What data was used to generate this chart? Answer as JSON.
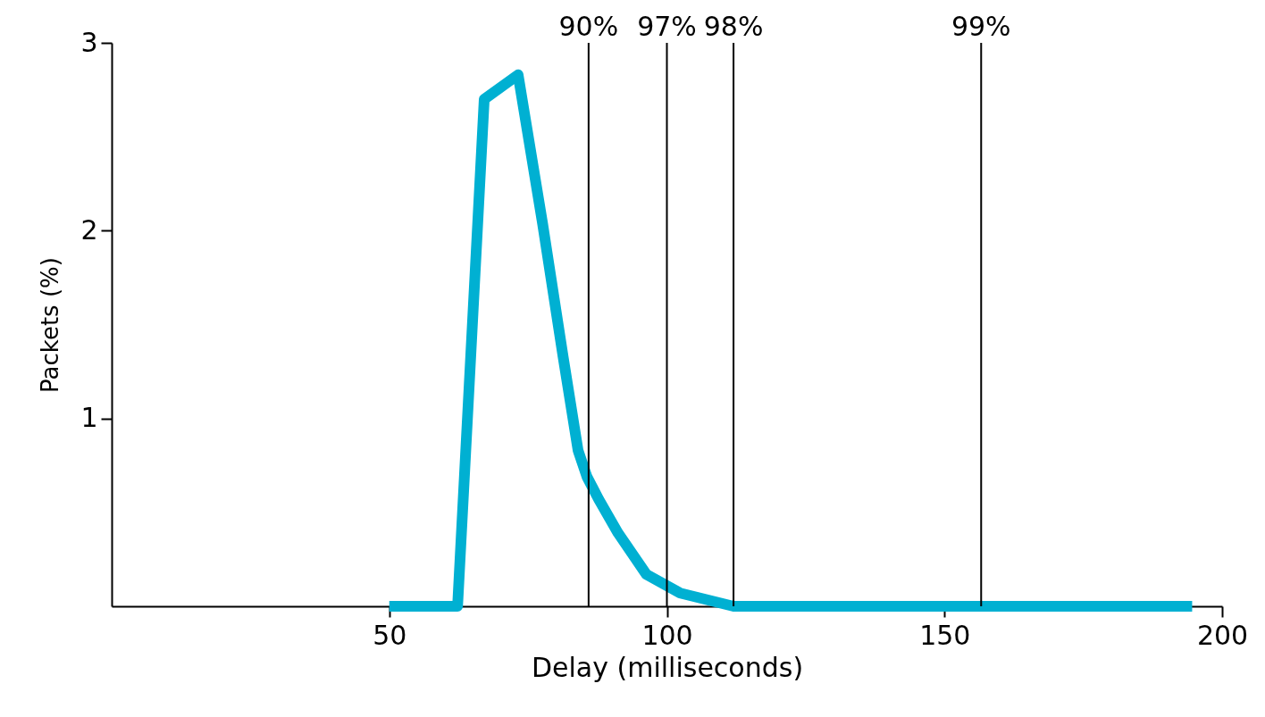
{
  "chart_data": {
    "type": "line",
    "xlabel": "Delay (milliseconds)",
    "ylabel": "Packets (%)",
    "xlim": [
      0,
      200
    ],
    "ylim": [
      0,
      3
    ],
    "xticks": [
      50,
      100,
      150,
      200
    ],
    "yticks": [
      1,
      2,
      3
    ],
    "grid": false,
    "series": [
      {
        "color": "#00b0d2",
        "x": [
          50,
          62.3,
          67.1,
          73.2,
          77.6,
          81.3,
          84,
          85.6,
          87.7,
          91.2,
          96.3,
          102.4,
          112,
          194.6
        ],
        "values": [
          0,
          0,
          2.7,
          2.83,
          2.04,
          1.33,
          0.83,
          0.69,
          0.57,
          0.39,
          0.17,
          0.07,
          0,
          0
        ]
      }
    ],
    "ref_lines": [
      {
        "axis": "x",
        "value": 85.9
      },
      {
        "axis": "x",
        "value": 100
      },
      {
        "axis": "x",
        "value": 112
      },
      {
        "axis": "x",
        "value": 156.6
      }
    ],
    "annotations": [
      {
        "text": "90%",
        "x": 85.9,
        "y": 3
      },
      {
        "text": "97%",
        "x": 100,
        "y": 3
      },
      {
        "text": "98%",
        "x": 112,
        "y": 3
      },
      {
        "text": "99%",
        "x": 156.6,
        "y": 3
      }
    ]
  }
}
